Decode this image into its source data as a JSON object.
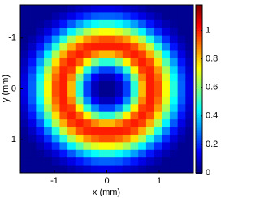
{
  "chart_data": {
    "type": "heatmap",
    "x_label": "x (mm)",
    "y_label": "y (mm)",
    "colormap": "jet",
    "xlim": [
      -1.65,
      1.65
    ],
    "ylim": [
      1.65,
      -1.65
    ],
    "xticks": [
      -1,
      0,
      1
    ],
    "yticks": [
      -1,
      0,
      1
    ],
    "zlim": [
      0,
      1.18
    ],
    "zticks": [
      0,
      0.2,
      0.4,
      0.6,
      0.8,
      1
    ],
    "x": [
      -1.575,
      -1.425,
      -1.275,
      -1.125,
      -0.975,
      -0.825,
      -0.675,
      -0.525,
      -0.375,
      -0.225,
      -0.075,
      0.075,
      0.225,
      0.375,
      0.525,
      0.675,
      0.825,
      0.975,
      1.125,
      1.275,
      1.425,
      1.575
    ],
    "y": [
      -1.575,
      -1.425,
      -1.275,
      -1.125,
      -0.975,
      -0.825,
      -0.675,
      -0.525,
      -0.375,
      -0.225,
      -0.075,
      0.075,
      0.225,
      0.375,
      0.525,
      0.675,
      0.825,
      0.975,
      1.125,
      1.275,
      1.425,
      1.575
    ],
    "z": [
      [
        0.02,
        0.02,
        0.02,
        0.02,
        0.02,
        0.03,
        0.05,
        0.07,
        0.09,
        0.11,
        0.12,
        0.12,
        0.11,
        0.09,
        0.07,
        0.05,
        0.03,
        0.02,
        0.02,
        0.02,
        0.02,
        0.02
      ],
      [
        0.02,
        0.02,
        0.02,
        0.02,
        0.05,
        0.08,
        0.12,
        0.17,
        0.21,
        0.25,
        0.26,
        0.26,
        0.25,
        0.21,
        0.17,
        0.12,
        0.08,
        0.05,
        0.02,
        0.02,
        0.02,
        0.02
      ],
      [
        0.02,
        0.02,
        0.03,
        0.06,
        0.1,
        0.17,
        0.25,
        0.33,
        0.4,
        0.45,
        0.48,
        0.48,
        0.45,
        0.4,
        0.33,
        0.25,
        0.17,
        0.1,
        0.06,
        0.03,
        0.02,
        0.02
      ],
      [
        0.02,
        0.02,
        0.06,
        0.11,
        0.2,
        0.3,
        0.43,
        0.54,
        0.64,
        0.7,
        0.73,
        0.73,
        0.7,
        0.64,
        0.54,
        0.43,
        0.3,
        0.2,
        0.11,
        0.06,
        0.02,
        0.02
      ],
      [
        0.02,
        0.05,
        0.1,
        0.2,
        0.33,
        0.48,
        0.64,
        0.77,
        0.86,
        0.91,
        0.94,
        0.94,
        0.91,
        0.86,
        0.77,
        0.64,
        0.48,
        0.33,
        0.2,
        0.1,
        0.05,
        0.02
      ],
      [
        0.03,
        0.08,
        0.17,
        0.3,
        0.48,
        0.67,
        0.83,
        0.94,
        0.99,
        1.0,
        1.0,
        1.0,
        1.0,
        0.99,
        0.94,
        0.83,
        0.67,
        0.48,
        0.3,
        0.17,
        0.08,
        0.03
      ],
      [
        0.05,
        0.12,
        0.25,
        0.43,
        0.64,
        0.83,
        0.96,
        1.0,
        0.96,
        0.88,
        0.82,
        0.82,
        0.88,
        0.96,
        1.0,
        0.96,
        0.83,
        0.64,
        0.43,
        0.25,
        0.12,
        0.05
      ],
      [
        0.07,
        0.17,
        0.33,
        0.54,
        0.77,
        0.94,
        1.0,
        0.92,
        0.75,
        0.58,
        0.49,
        0.49,
        0.58,
        0.75,
        0.92,
        1.0,
        0.94,
        0.77,
        0.54,
        0.33,
        0.17,
        0.07
      ],
      [
        0.09,
        0.21,
        0.4,
        0.64,
        0.86,
        0.99,
        0.96,
        0.75,
        0.49,
        0.31,
        0.22,
        0.22,
        0.31,
        0.49,
        0.75,
        0.96,
        0.99,
        0.86,
        0.64,
        0.4,
        0.21,
        0.09
      ],
      [
        0.11,
        0.25,
        0.45,
        0.7,
        0.91,
        1.0,
        0.88,
        0.58,
        0.31,
        0.14,
        0.07,
        0.07,
        0.14,
        0.31,
        0.58,
        0.88,
        1.0,
        0.91,
        0.7,
        0.45,
        0.25,
        0.11
      ],
      [
        0.12,
        0.26,
        0.48,
        0.73,
        0.94,
        1.0,
        0.82,
        0.49,
        0.22,
        0.07,
        0.02,
        0.02,
        0.07,
        0.22,
        0.49,
        0.82,
        1.0,
        0.94,
        0.73,
        0.48,
        0.26,
        0.12
      ],
      [
        0.12,
        0.26,
        0.48,
        0.73,
        0.94,
        1.0,
        0.82,
        0.49,
        0.22,
        0.07,
        0.02,
        0.02,
        0.07,
        0.22,
        0.49,
        0.82,
        1.0,
        0.94,
        0.73,
        0.48,
        0.26,
        0.12
      ],
      [
        0.11,
        0.25,
        0.45,
        0.7,
        0.91,
        1.0,
        0.88,
        0.58,
        0.31,
        0.14,
        0.07,
        0.07,
        0.14,
        0.31,
        0.58,
        0.88,
        1.0,
        0.91,
        0.7,
        0.45,
        0.25,
        0.11
      ],
      [
        0.09,
        0.21,
        0.4,
        0.64,
        0.86,
        0.99,
        0.96,
        0.75,
        0.49,
        0.31,
        0.22,
        0.22,
        0.31,
        0.49,
        0.75,
        0.96,
        0.99,
        0.86,
        0.64,
        0.4,
        0.21,
        0.09
      ],
      [
        0.07,
        0.17,
        0.33,
        0.54,
        0.77,
        0.94,
        1.0,
        0.92,
        0.75,
        0.58,
        0.49,
        0.49,
        0.58,
        0.75,
        0.92,
        1.0,
        0.94,
        0.77,
        0.54,
        0.33,
        0.17,
        0.07
      ],
      [
        0.05,
        0.12,
        0.25,
        0.43,
        0.64,
        0.83,
        0.96,
        1.0,
        0.96,
        0.88,
        0.82,
        0.82,
        0.88,
        0.96,
        1.0,
        0.96,
        0.83,
        0.64,
        0.43,
        0.25,
        0.12,
        0.05
      ],
      [
        0.03,
        0.08,
        0.17,
        0.3,
        0.48,
        0.67,
        0.83,
        0.94,
        0.99,
        1.0,
        1.0,
        1.0,
        1.0,
        0.99,
        0.94,
        0.83,
        0.67,
        0.48,
        0.3,
        0.17,
        0.08,
        0.03
      ],
      [
        0.02,
        0.05,
        0.1,
        0.2,
        0.33,
        0.48,
        0.64,
        0.77,
        0.86,
        0.91,
        0.94,
        0.94,
        0.91,
        0.86,
        0.77,
        0.64,
        0.48,
        0.33,
        0.2,
        0.1,
        0.05,
        0.02
      ],
      [
        0.02,
        0.02,
        0.06,
        0.11,
        0.2,
        0.3,
        0.43,
        0.54,
        0.64,
        0.7,
        0.73,
        0.73,
        0.7,
        0.64,
        0.54,
        0.43,
        0.3,
        0.2,
        0.11,
        0.06,
        0.02,
        0.02
      ],
      [
        0.02,
        0.02,
        0.03,
        0.06,
        0.1,
        0.17,
        0.25,
        0.33,
        0.4,
        0.45,
        0.48,
        0.48,
        0.45,
        0.4,
        0.33,
        0.25,
        0.17,
        0.1,
        0.06,
        0.03,
        0.02,
        0.02
      ],
      [
        0.02,
        0.02,
        0.02,
        0.02,
        0.05,
        0.08,
        0.12,
        0.17,
        0.21,
        0.25,
        0.26,
        0.26,
        0.25,
        0.21,
        0.17,
        0.12,
        0.08,
        0.05,
        0.02,
        0.02,
        0.02,
        0.02
      ],
      [
        0.02,
        0.02,
        0.02,
        0.02,
        0.02,
        0.03,
        0.05,
        0.07,
        0.09,
        0.11,
        0.12,
        0.12,
        0.11,
        0.09,
        0.07,
        0.05,
        0.03,
        0.02,
        0.02,
        0.02,
        0.02,
        0.02
      ]
    ]
  }
}
